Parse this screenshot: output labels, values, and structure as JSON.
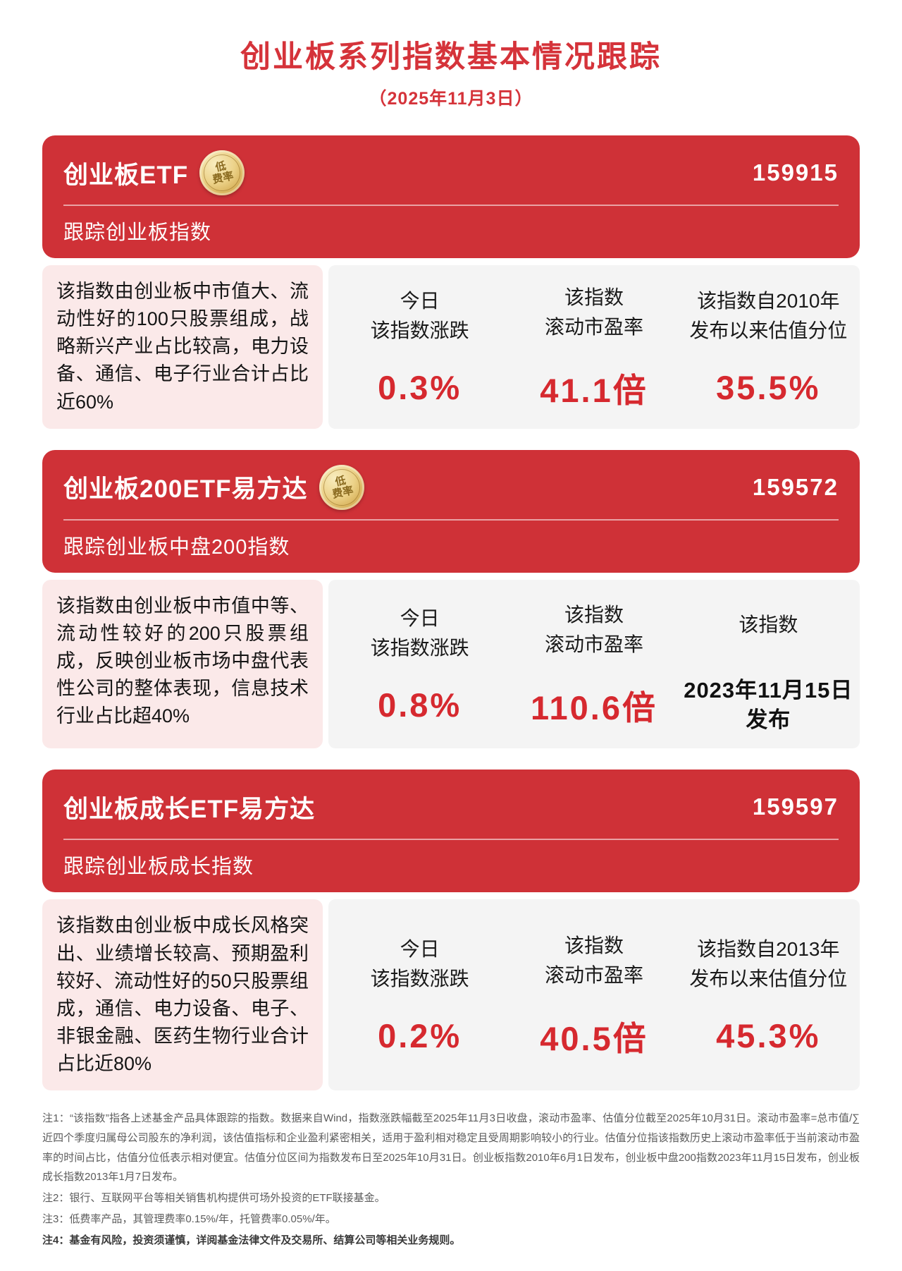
{
  "page": {
    "title": "创业板系列指数基本情况跟踪",
    "date": "（2025年11月3日）"
  },
  "colors": {
    "title_red": "#d5333a",
    "card_red": "#cf3137",
    "value_red": "#d6292f",
    "desc_pink": "#fbe9e9",
    "panel_gray": "#f4f4f4",
    "badge_gold": "#ecd289"
  },
  "cards": [
    {
      "name": "创业板ETF",
      "badge": {
        "line1": "低",
        "line2": "费率"
      },
      "code": "159915",
      "subtitle": "跟踪创业板指数",
      "description": "该指数由创业板中市值大、流动性好的100只股票组成，战略新兴产业占比较高，电力设备、通信、电子行业合计占比近60%",
      "stats": [
        {
          "label": [
            "今日",
            "该指数涨跌"
          ],
          "value": "0.3%"
        },
        {
          "label": [
            "该指数",
            "滚动市盈率"
          ],
          "value": "41.1倍"
        },
        {
          "label": [
            "该指数自2010年",
            "发布以来估值分位"
          ],
          "value": "35.5%"
        }
      ]
    },
    {
      "name": "创业板200ETF易方达",
      "badge": {
        "line1": "低",
        "line2": "费率"
      },
      "code": "159572",
      "subtitle": "跟踪创业板中盘200指数",
      "description": "该指数由创业板中市值中等、流动性较好的200只股票组成，反映创业板市场中盘代表性公司的整体表现，信息技术行业占比超40%",
      "stats": [
        {
          "label": [
            "今日",
            "该指数涨跌"
          ],
          "value": "0.8%"
        },
        {
          "label": [
            "该指数",
            "滚动市盈率"
          ],
          "value": "110.6倍"
        },
        {
          "label": [
            "该指数"
          ],
          "value": [
            "2023年11月15日",
            "发布"
          ]
        }
      ]
    },
    {
      "name": "创业板成长ETF易方达",
      "code": "159597",
      "subtitle": "跟踪创业板成长指数",
      "description": "该指数由创业板中成长风格突出、业绩增长较高、预期盈利较好、流动性好的50只股票组成，通信、电力设备、电子、非银金融、医药生物行业合计占比近80%",
      "stats": [
        {
          "label": [
            "今日",
            "该指数涨跌"
          ],
          "value": "0.2%"
        },
        {
          "label": [
            "该指数",
            "滚动市盈率"
          ],
          "value": "40.5倍"
        },
        {
          "label": [
            "该指数自2013年",
            "发布以来估值分位"
          ],
          "value": "45.3%"
        }
      ]
    }
  ],
  "notes": [
    "注1：“该指数”指各上述基金产品具体跟踪的指数。数据来自Wind，指数涨跌幅截至2025年11月3日收盘，滚动市盈率、估值分位截至2025年10月31日。滚动市盈率=总市值/∑近四个季度归属母公司股东的净利润，该估值指标和企业盈利紧密相关，适用于盈利相对稳定且受周期影响较小的行业。估值分位指该指数历史上滚动市盈率低于当前滚动市盈率的时间占比，估值分位低表示相对便宜。估值分位区间为指数发布日至2025年10月31日。创业板指数2010年6月1日发布，创业板中盘200指数2023年11月15日发布，创业板成长指数2013年1月7日发布。",
    "注2：银行、互联网平台等相关销售机构提供可场外投资的ETF联接基金。",
    "注3：低费率产品，其管理费率0.15%/年，托管费率0.05%/年。",
    "注4：基金有风险，投资须谨慎，详阅基金法律文件及交易所、结算公司等相关业务规则。"
  ]
}
